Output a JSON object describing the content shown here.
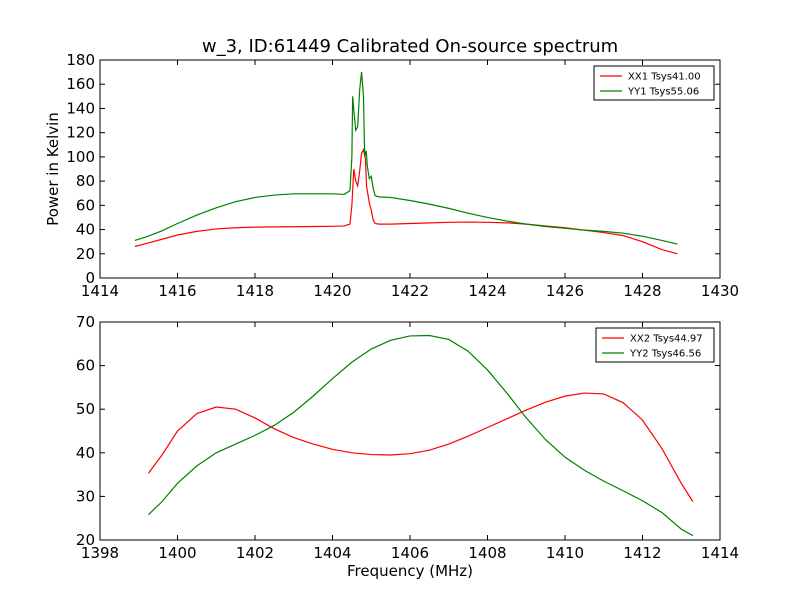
{
  "title": "w_3, ID:61449 Calibrated On-source spectrum",
  "chart_data": [
    {
      "type": "line",
      "xlim": [
        1414,
        1430
      ],
      "ylim": [
        0,
        180
      ],
      "ylabel": "Power in Kelvin",
      "xlabel": "",
      "xticks": [
        1414,
        1416,
        1418,
        1420,
        1422,
        1424,
        1426,
        1428,
        1430
      ],
      "yticks": [
        0,
        20,
        40,
        60,
        80,
        100,
        120,
        140,
        160,
        180
      ],
      "legend_position": "top-right",
      "series": [
        {
          "name": "XX1 Tsys41.00",
          "color": "#ff0000",
          "points": [
            [
              1414.9,
              26
            ],
            [
              1415.2,
              28.5
            ],
            [
              1415.6,
              32
            ],
            [
              1416,
              35.5
            ],
            [
              1416.5,
              38.5
            ],
            [
              1417,
              40.5
            ],
            [
              1417.5,
              41.5
            ],
            [
              1418,
              42
            ],
            [
              1418.5,
              42.2
            ],
            [
              1419,
              42.3
            ],
            [
              1419.5,
              42.5
            ],
            [
              1420,
              42.7
            ],
            [
              1420.3,
              43
            ],
            [
              1420.45,
              44.5
            ],
            [
              1420.5,
              60
            ],
            [
              1420.55,
              90
            ],
            [
              1420.6,
              80
            ],
            [
              1420.65,
              76
            ],
            [
              1420.7,
              88
            ],
            [
              1420.75,
              103
            ],
            [
              1420.8,
              106
            ],
            [
              1420.85,
              98
            ],
            [
              1420.88,
              75
            ],
            [
              1420.92,
              68
            ],
            [
              1420.95,
              62
            ],
            [
              1421,
              56
            ],
            [
              1421.05,
              48
            ],
            [
              1421.1,
              45
            ],
            [
              1421.2,
              44.5
            ],
            [
              1421.5,
              44.5
            ],
            [
              1422,
              45
            ],
            [
              1422.5,
              45.5
            ],
            [
              1423,
              46
            ],
            [
              1423.5,
              46.2
            ],
            [
              1424,
              46
            ],
            [
              1424.5,
              45.5
            ],
            [
              1425,
              44.5
            ],
            [
              1425.5,
              43
            ],
            [
              1426,
              41.5
            ],
            [
              1426.5,
              39.5
            ],
            [
              1427,
              37.5
            ],
            [
              1427.5,
              35
            ],
            [
              1428,
              30
            ],
            [
              1428.5,
              23.5
            ],
            [
              1428.9,
              20
            ]
          ]
        },
        {
          "name": "YY1 Tsys55.06",
          "color": "#008000",
          "points": [
            [
              1414.9,
              31
            ],
            [
              1415.2,
              34
            ],
            [
              1415.6,
              39
            ],
            [
              1416,
              45
            ],
            [
              1416.5,
              52
            ],
            [
              1417,
              58
            ],
            [
              1417.5,
              63
            ],
            [
              1418,
              66.5
            ],
            [
              1418.5,
              68.5
            ],
            [
              1419,
              69.5
            ],
            [
              1419.5,
              69.5
            ],
            [
              1420,
              69.5
            ],
            [
              1420.3,
              69
            ],
            [
              1420.45,
              72
            ],
            [
              1420.5,
              100
            ],
            [
              1420.52,
              150
            ],
            [
              1420.56,
              135
            ],
            [
              1420.6,
              122
            ],
            [
              1420.65,
              125
            ],
            [
              1420.7,
              155
            ],
            [
              1420.75,
              170
            ],
            [
              1420.8,
              150
            ],
            [
              1420.83,
              100
            ],
            [
              1420.87,
              105
            ],
            [
              1420.9,
              92
            ],
            [
              1420.95,
              82
            ],
            [
              1421,
              84
            ],
            [
              1421.05,
              74
            ],
            [
              1421.1,
              68
            ],
            [
              1421.2,
              67
            ],
            [
              1421.5,
              66.5
            ],
            [
              1422,
              64
            ],
            [
              1422.5,
              61
            ],
            [
              1423,
              57.5
            ],
            [
              1423.5,
              53.5
            ],
            [
              1424,
              50
            ],
            [
              1424.5,
              47
            ],
            [
              1425,
              44.5
            ],
            [
              1425.5,
              42.5
            ],
            [
              1426,
              41
            ],
            [
              1426.5,
              39.5
            ],
            [
              1427,
              38.5
            ],
            [
              1427.5,
              37
            ],
            [
              1428,
              34.5
            ],
            [
              1428.5,
              31
            ],
            [
              1428.9,
              28
            ]
          ]
        }
      ]
    },
    {
      "type": "line",
      "xlim": [
        1398,
        1414
      ],
      "ylim": [
        20,
        70
      ],
      "ylabel": "",
      "xlabel": "Frequency (MHz)",
      "xticks": [
        1398,
        1400,
        1402,
        1404,
        1406,
        1408,
        1410,
        1412,
        1414
      ],
      "yticks": [
        20,
        30,
        40,
        50,
        60,
        70
      ],
      "legend_position": "top-right",
      "series": [
        {
          "name": "XX2 Tsys44.97",
          "color": "#ff0000",
          "points": [
            [
              1399.25,
              35.3
            ],
            [
              1399.6,
              39.5
            ],
            [
              1400,
              45
            ],
            [
              1400.5,
              49
            ],
            [
              1401,
              50.5
            ],
            [
              1401.5,
              50
            ],
            [
              1402,
              48
            ],
            [
              1402.5,
              45.5
            ],
            [
              1403,
              43.5
            ],
            [
              1403.5,
              42
            ],
            [
              1404,
              40.8
            ],
            [
              1404.5,
              40
            ],
            [
              1405,
              39.6
            ],
            [
              1405.5,
              39.5
            ],
            [
              1406,
              39.8
            ],
            [
              1406.5,
              40.6
            ],
            [
              1407,
              42
            ],
            [
              1407.5,
              43.8
            ],
            [
              1408,
              45.8
            ],
            [
              1408.5,
              47.8
            ],
            [
              1409,
              49.8
            ],
            [
              1409.5,
              51.6
            ],
            [
              1410,
              53
            ],
            [
              1410.5,
              53.7
            ],
            [
              1411,
              53.5
            ],
            [
              1411.5,
              51.5
            ],
            [
              1412,
              47.5
            ],
            [
              1412.5,
              41
            ],
            [
              1413,
              33
            ],
            [
              1413.3,
              28.8
            ]
          ]
        },
        {
          "name": "YY2 Tsys46.56",
          "color": "#008000",
          "points": [
            [
              1399.25,
              25.8
            ],
            [
              1399.6,
              28.8
            ],
            [
              1400,
              33
            ],
            [
              1400.5,
              37
            ],
            [
              1401,
              40
            ],
            [
              1401.5,
              42
            ],
            [
              1402,
              44
            ],
            [
              1402.5,
              46.3
            ],
            [
              1403,
              49.3
            ],
            [
              1403.5,
              53
            ],
            [
              1404,
              57
            ],
            [
              1404.5,
              60.8
            ],
            [
              1405,
              63.8
            ],
            [
              1405.5,
              65.8
            ],
            [
              1406,
              66.8
            ],
            [
              1406.5,
              66.9
            ],
            [
              1407,
              66
            ],
            [
              1407.5,
              63.3
            ],
            [
              1408,
              59
            ],
            [
              1408.5,
              53.7
            ],
            [
              1409,
              48
            ],
            [
              1409.5,
              43
            ],
            [
              1410,
              39
            ],
            [
              1410.5,
              36
            ],
            [
              1411,
              33.5
            ],
            [
              1411.5,
              31.3
            ],
            [
              1412,
              29
            ],
            [
              1412.5,
              26.3
            ],
            [
              1413,
              22.5
            ],
            [
              1413.3,
              21
            ]
          ]
        }
      ]
    }
  ]
}
